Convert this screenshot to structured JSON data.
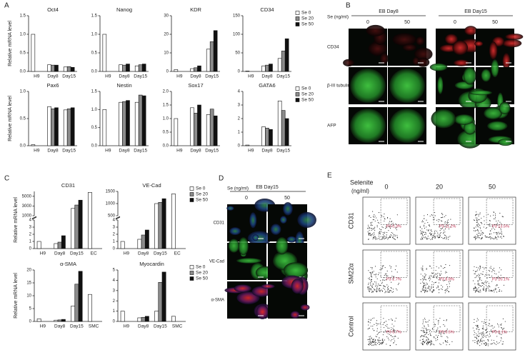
{
  "panel_letters": [
    "A",
    "B",
    "C",
    "D",
    "E"
  ],
  "chart_data": [
    {
      "type": "bar",
      "title": "Oct4",
      "ylabel": "Relative mRNA level",
      "categories": [
        "H9",
        "Day8",
        "Day15"
      ],
      "series": [
        {
          "name": "Se 0",
          "color": "#ffffff",
          "values": [
            1.0,
            0.18,
            0.12
          ]
        },
        {
          "name": "Se 20",
          "color": "#8c8c8c",
          "values": [
            null,
            0.17,
            0.13
          ]
        },
        {
          "name": "Se 50",
          "color": "#111111",
          "values": [
            null,
            0.17,
            0.11
          ]
        }
      ],
      "ylim": [
        0,
        1.5
      ],
      "yticks": [
        {
          "value": 0,
          "label": "0.0"
        },
        0.5,
        {
          "value": 1,
          "label": "1.0"
        },
        1.5
      ]
    },
    {
      "type": "bar",
      "title": "Nanog",
      "categories": [
        "H9",
        "Day8",
        "Day15"
      ],
      "series": [
        {
          "name": "Se 0",
          "color": "#ffffff",
          "values": [
            1.0,
            0.18,
            0.15
          ]
        },
        {
          "name": "Se 20",
          "color": "#8c8c8c",
          "values": [
            null,
            0.17,
            0.18
          ]
        },
        {
          "name": "Se 50",
          "color": "#111111",
          "values": [
            null,
            0.2,
            0.2
          ]
        }
      ],
      "ylim": [
        0,
        1.5
      ],
      "yticks": [
        {
          "value": 0,
          "label": "0.0"
        },
        0.5,
        {
          "value": 1,
          "label": "1.0"
        },
        1.5
      ]
    },
    {
      "type": "bar",
      "title": "KDR",
      "categories": [
        "H9",
        "Day8",
        "Day15"
      ],
      "series": [
        {
          "name": "Se 0",
          "color": "#ffffff",
          "values": [
            1,
            1.5,
            12
          ]
        },
        {
          "name": "Se 20",
          "color": "#8c8c8c",
          "values": [
            null,
            2,
            16
          ]
        },
        {
          "name": "Se 50",
          "color": "#111111",
          "values": [
            null,
            3,
            22
          ]
        }
      ],
      "ylim": [
        0,
        30
      ],
      "yticks": [
        0,
        10,
        20,
        30
      ]
    },
    {
      "type": "bar",
      "title": "CD34",
      "categories": [
        "H9",
        "Day8",
        "Day15"
      ],
      "legend": true,
      "series": [
        {
          "name": "Se 0",
          "color": "#ffffff",
          "values": [
            1,
            15,
            35
          ]
        },
        {
          "name": "Se 20",
          "color": "#8c8c8c",
          "values": [
            null,
            17,
            55
          ]
        },
        {
          "name": "Se 50",
          "color": "#111111",
          "values": [
            null,
            20,
            88
          ]
        }
      ],
      "ylim": [
        0,
        150
      ],
      "yticks": [
        0,
        50,
        100,
        150
      ]
    },
    {
      "type": "bar",
      "title": "Pax6",
      "ylabel": "Relative mRNA level",
      "categories": [
        "H9",
        "Day8",
        "Day15"
      ],
      "series": [
        {
          "name": "Se 0",
          "color": "#ffffff",
          "values": [
            0.02,
            0.72,
            0.66
          ]
        },
        {
          "name": "Se 20",
          "color": "#8c8c8c",
          "values": [
            null,
            0.68,
            0.68
          ]
        },
        {
          "name": "Se 50",
          "color": "#111111",
          "values": [
            null,
            0.7,
            0.7
          ]
        }
      ],
      "ylim": [
        0,
        1
      ],
      "yticks": [
        {
          "value": 0,
          "label": "0.0"
        },
        0.5,
        {
          "value": 1,
          "label": "1.0"
        }
      ]
    },
    {
      "type": "bar",
      "title": "Nestin",
      "categories": [
        "H9",
        "Day8",
        "Day15"
      ],
      "series": [
        {
          "name": "Se 0",
          "color": "#ffffff",
          "values": [
            1.0,
            1.2,
            1.2
          ]
        },
        {
          "name": "Se 20",
          "color": "#8c8c8c",
          "values": [
            null,
            1.22,
            1.4
          ]
        },
        {
          "name": "Se 50",
          "color": "#111111",
          "values": [
            null,
            1.25,
            1.38
          ]
        }
      ],
      "ylim": [
        0,
        1.5
      ],
      "yticks": [
        {
          "value": 0,
          "label": "0.0"
        },
        0.5,
        {
          "value": 1,
          "label": "1.0"
        },
        1.5
      ]
    },
    {
      "type": "bar",
      "title": "Sox17",
      "categories": [
        "H9",
        "Day8",
        "Day15"
      ],
      "series": [
        {
          "name": "Se 0",
          "color": "#ffffff",
          "values": [
            1.0,
            1.4,
            1.15
          ]
        },
        {
          "name": "Se 20",
          "color": "#8c8c8c",
          "values": [
            null,
            1.2,
            1.35
          ]
        },
        {
          "name": "Se 50",
          "color": "#111111",
          "values": [
            null,
            1.5,
            1.1
          ]
        }
      ],
      "ylim": [
        0,
        2
      ],
      "yticks": [
        {
          "value": 0,
          "label": "0.0"
        },
        0.5,
        {
          "value": 1,
          "label": "1.0"
        },
        1.5,
        {
          "value": 2,
          "label": "2.0"
        }
      ]
    },
    {
      "type": "bar",
      "title": "GATA6",
      "categories": [
        "H9",
        "Day8",
        "Day15"
      ],
      "legend": true,
      "series": [
        {
          "name": "Se 0",
          "color": "#ffffff",
          "values": [
            0.05,
            1.4,
            3.3
          ]
        },
        {
          "name": "Se 20",
          "color": "#8c8c8c",
          "values": [
            null,
            1.3,
            2.6
          ]
        },
        {
          "name": "Se 50",
          "color": "#111111",
          "values": [
            null,
            1.2,
            2.0
          ]
        }
      ],
      "ylim": [
        0,
        4
      ],
      "yticks": [
        0,
        1,
        2,
        3,
        4
      ]
    },
    {
      "type": "bar",
      "title": "CD31",
      "ylabel": "Relative mRNA level",
      "categories": [
        "H9",
        "Day8",
        "Day15",
        "EC"
      ],
      "series": [
        {
          "name": "Se 0",
          "color": "#ffffff",
          "values": [
            1,
            0.7,
            2500,
            5800
          ]
        },
        {
          "name": "Se 20",
          "color": "#8c8c8c",
          "values": [
            null,
            0.9,
            3200,
            null
          ]
        },
        {
          "name": "Se 50",
          "color": "#111111",
          "values": [
            null,
            1.8,
            4200,
            null
          ]
        }
      ],
      "ysegments": [
        {
          "ylim": [
            0,
            4
          ],
          "yticks": [
            0,
            1,
            2,
            3,
            4
          ]
        },
        {
          "ylim": [
            1000,
            6000
          ],
          "yticks": [
            1000,
            3000,
            5000
          ]
        }
      ]
    },
    {
      "type": "bar",
      "title": "VE-Cad",
      "categories": [
        "H9",
        "Day8",
        "Day15",
        "EC"
      ],
      "legend": true,
      "series": [
        {
          "name": "Se 0",
          "color": "#ffffff",
          "values": [
            1,
            1.3,
            1000,
            1400
          ]
        },
        {
          "name": "Se 20",
          "color": "#8c8c8c",
          "values": [
            null,
            1.9,
            1050,
            null
          ]
        },
        {
          "name": "Se 50",
          "color": "#111111",
          "values": [
            null,
            2.6,
            1200,
            null
          ]
        }
      ],
      "ysegments": [
        {
          "ylim": [
            0,
            4
          ],
          "yticks": [
            0,
            1,
            2,
            3,
            4
          ]
        },
        {
          "ylim": [
            500,
            1500
          ],
          "yticks": [
            500,
            1000,
            1500
          ]
        }
      ]
    },
    {
      "type": "bar",
      "title": "α-SMA",
      "ylabel": "Relative mRNA level",
      "categories": [
        "H9",
        "Day8",
        "Day15",
        "SMC"
      ],
      "series": [
        {
          "name": "Se 0",
          "color": "#ffffff",
          "values": [
            1,
            0.5,
            6,
            10.5
          ]
        },
        {
          "name": "Se 20",
          "color": "#8c8c8c",
          "values": [
            null,
            0.6,
            14.5,
            null
          ]
        },
        {
          "name": "Se 50",
          "color": "#111111",
          "values": [
            null,
            0.8,
            19.5,
            null
          ]
        }
      ],
      "ylim": [
        0,
        20
      ],
      "yticks": [
        0,
        5,
        10,
        15,
        20
      ]
    },
    {
      "type": "bar",
      "title": "Myocardin",
      "categories": [
        "H9",
        "Day8",
        "Day15",
        "SMC"
      ],
      "legend": true,
      "series": [
        {
          "name": "Se 0",
          "color": "#ffffff",
          "values": [
            1,
            0.35,
            1,
            0.5
          ]
        },
        {
          "name": "Se 20",
          "color": "#8c8c8c",
          "values": [
            null,
            0.4,
            3.8,
            null
          ]
        },
        {
          "name": "Se 50",
          "color": "#111111",
          "values": [
            null,
            0.5,
            4.8,
            null
          ]
        }
      ],
      "ylim": [
        0,
        5
      ],
      "yticks": [
        0,
        1,
        2,
        3,
        4,
        5
      ]
    }
  ],
  "panel_b": {
    "se_label": "Se (ng/ml)",
    "groups": [
      "EB Day8",
      "EB Day15"
    ],
    "columns": [
      "0",
      "50",
      "0",
      "50"
    ],
    "rows": [
      "CD34",
      "β-III tubulin",
      "AFP"
    ]
  },
  "panel_d": {
    "se_label": "Se (ng/ml)",
    "group": "EB Day15",
    "columns": [
      "0",
      "50"
    ],
    "rows": [
      "CD31",
      "VE-Cad",
      "α-SMA"
    ]
  },
  "panel_e": {
    "header": "Selenite",
    "unit": "(ng/ml)",
    "columns": [
      "0",
      "20",
      "50"
    ],
    "rows": [
      "CD31",
      "SM22α",
      "Control"
    ],
    "gates": [
      [
        "P3 0.3%",
        "P3 11.2%",
        "P3 13.5%"
      ],
      [
        "P3 2.7%",
        "P3 8.8%",
        "P3 10.1%"
      ],
      [
        "P3 0.7%",
        "P3 0.5%",
        "P3 0.1%"
      ]
    ]
  }
}
